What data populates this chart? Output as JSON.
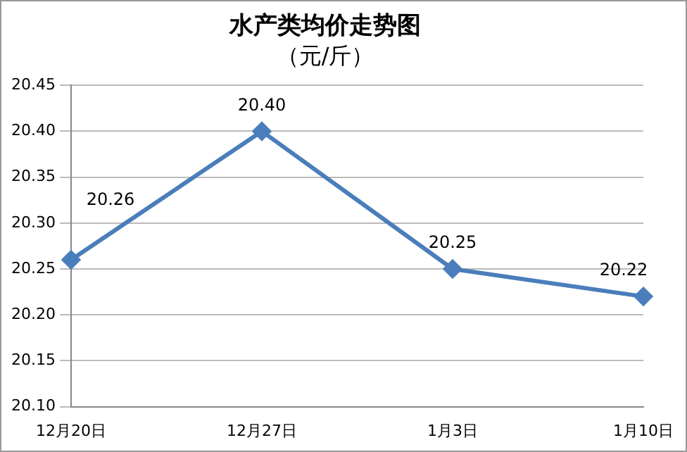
{
  "chart_data": {
    "type": "line",
    "title": "水产类均价走势图",
    "subtitle": "（元/斤）",
    "categories": [
      "12月20日",
      "12月27日",
      "1月3日",
      "1月10日"
    ],
    "series": [
      {
        "color": "#4a7ebb",
        "values": [
          20.26,
          20.4,
          20.25,
          20.22
        ],
        "value_labels": [
          "20.26",
          "20.40",
          "20.25",
          "20.22"
        ]
      }
    ],
    "ylim": [
      20.1,
      20.45
    ],
    "yticks": [
      {
        "value": 20.1,
        "label": "20.10"
      },
      {
        "value": 20.15,
        "label": "20.15"
      },
      {
        "value": 20.2,
        "label": "20.20"
      },
      {
        "value": 20.25,
        "label": "20.25"
      },
      {
        "value": 20.3,
        "label": "20.30"
      },
      {
        "value": 20.35,
        "label": "20.35"
      },
      {
        "value": 20.4,
        "label": "20.40"
      },
      {
        "value": 20.45,
        "label": "20.45"
      }
    ],
    "grid": "y",
    "legend": false,
    "marker": "diamond",
    "line_style": "solid"
  }
}
